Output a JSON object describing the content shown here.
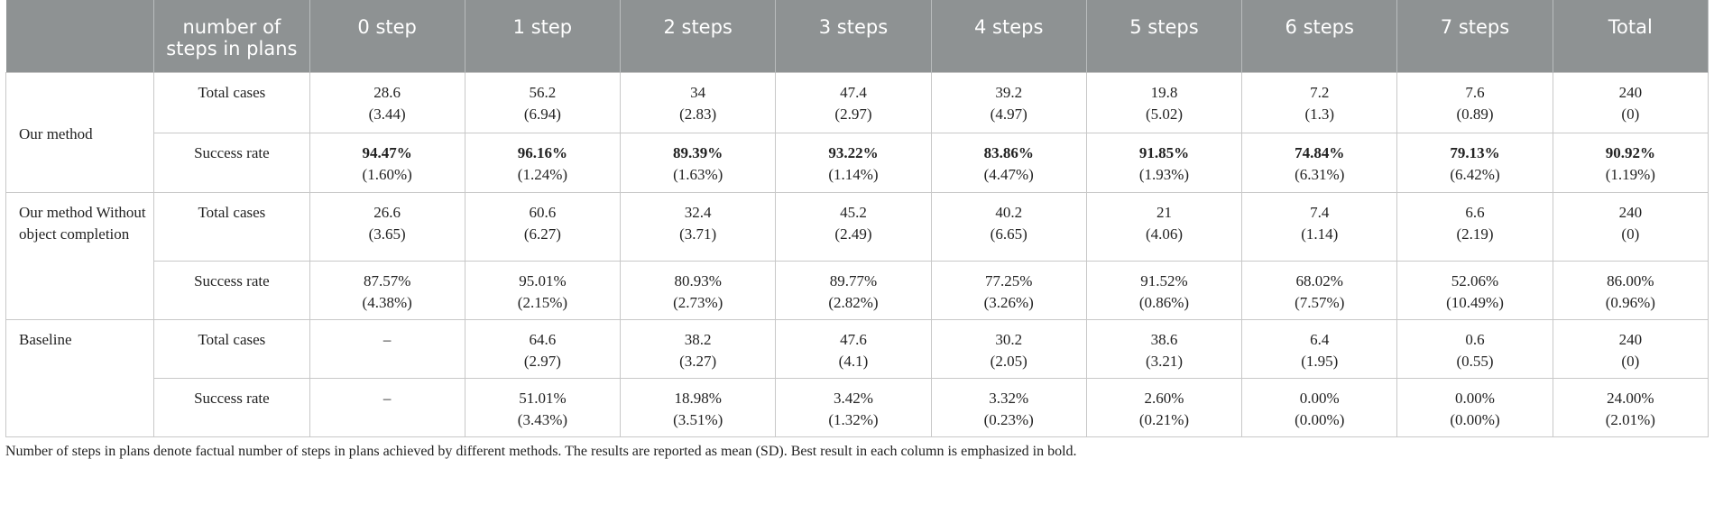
{
  "header": {
    "corner": "",
    "col_label": "number of steps in plans",
    "steps": [
      "0 step",
      "1 step",
      "2 steps",
      "3 steps",
      "4 steps",
      "5 steps",
      "6 steps",
      "7 steps",
      "Total"
    ]
  },
  "rows": [
    {
      "method": "Our method",
      "total_cases": {
        "label": "Total cases",
        "cells": [
          {
            "v": "28.6",
            "sd": "(3.44)"
          },
          {
            "v": "56.2",
            "sd": "(6.94)"
          },
          {
            "v": "34",
            "sd": "(2.83)"
          },
          {
            "v": "47.4",
            "sd": "(2.97)"
          },
          {
            "v": "39.2",
            "sd": "(4.97)"
          },
          {
            "v": "19.8",
            "sd": "(5.02)"
          },
          {
            "v": "7.2",
            "sd": "(1.3)"
          },
          {
            "v": "7.6",
            "sd": "(0.89)"
          },
          {
            "v": "240",
            "sd": "(0)"
          }
        ]
      },
      "success_rate": {
        "label": "Success rate",
        "cells": [
          {
            "v": "94.47%",
            "sd": "(1.60%)"
          },
          {
            "v": "96.16%",
            "sd": "(1.24%)"
          },
          {
            "v": "89.39%",
            "sd": "(1.63%)"
          },
          {
            "v": "93.22%",
            "sd": "(1.14%)"
          },
          {
            "v": "83.86%",
            "sd": "(4.47%)"
          },
          {
            "v": "91.85%",
            "sd": "(1.93%)"
          },
          {
            "v": "74.84%",
            "sd": "(6.31%)"
          },
          {
            "v": "79.13%",
            "sd": "(6.42%)"
          },
          {
            "v": "90.92%",
            "sd": "(1.19%)"
          }
        ]
      }
    },
    {
      "method": "Our method Without object completion",
      "total_cases": {
        "label": "Total cases",
        "cells": [
          {
            "v": "26.6",
            "sd": "(3.65)"
          },
          {
            "v": "60.6",
            "sd": "(6.27)"
          },
          {
            "v": "32.4",
            "sd": "(3.71)"
          },
          {
            "v": "45.2",
            "sd": "(2.49)"
          },
          {
            "v": "40.2",
            "sd": "(6.65)"
          },
          {
            "v": "21",
            "sd": "(4.06)"
          },
          {
            "v": "7.4",
            "sd": "(1.14)"
          },
          {
            "v": "6.6",
            "sd": "(2.19)"
          },
          {
            "v": "240",
            "sd": "(0)"
          }
        ]
      },
      "success_rate": {
        "label": "Success rate",
        "cells": [
          {
            "v": "87.57%",
            "sd": "(4.38%)"
          },
          {
            "v": "95.01%",
            "sd": "(2.15%)"
          },
          {
            "v": "80.93%",
            "sd": "(2.73%)"
          },
          {
            "v": "89.77%",
            "sd": "(2.82%)"
          },
          {
            "v": "77.25%",
            "sd": "(3.26%)"
          },
          {
            "v": "91.52%",
            "sd": "(0.86%)"
          },
          {
            "v": "68.02%",
            "sd": "(7.57%)"
          },
          {
            "v": "52.06%",
            "sd": "(10.49%)"
          },
          {
            "v": "86.00%",
            "sd": "(0.96%)"
          }
        ]
      }
    },
    {
      "method": "Baseline",
      "total_cases": {
        "label": "Total cases",
        "cells": [
          {
            "v": "–",
            "sd": ""
          },
          {
            "v": "64.6",
            "sd": "(2.97)"
          },
          {
            "v": "38.2",
            "sd": "(3.27)"
          },
          {
            "v": "47.6",
            "sd": "(4.1)"
          },
          {
            "v": "30.2",
            "sd": "(2.05)"
          },
          {
            "v": "38.6",
            "sd": "(3.21)"
          },
          {
            "v": "6.4",
            "sd": "(1.95)"
          },
          {
            "v": "0.6",
            "sd": "(0.55)"
          },
          {
            "v": "240",
            "sd": "(0)"
          }
        ]
      },
      "success_rate": {
        "label": "Success rate",
        "cells": [
          {
            "v": "–",
            "sd": ""
          },
          {
            "v": "51.01%",
            "sd": "(3.43%)"
          },
          {
            "v": "18.98%",
            "sd": "(3.51%)"
          },
          {
            "v": "3.42%",
            "sd": "(1.32%)"
          },
          {
            "v": "3.32%",
            "sd": "(0.23%)"
          },
          {
            "v": "2.60%",
            "sd": "(0.21%)"
          },
          {
            "v": "0.00%",
            "sd": "(0.00%)"
          },
          {
            "v": "0.00%",
            "sd": "(0.00%)"
          },
          {
            "v": "24.00%",
            "sd": "(2.01%)"
          }
        ]
      }
    }
  ],
  "footnote": "Number of steps in plans denote factual number of steps in plans achieved by different methods. The results are reported as mean (SD). Best result in each column is emphasized in bold."
}
